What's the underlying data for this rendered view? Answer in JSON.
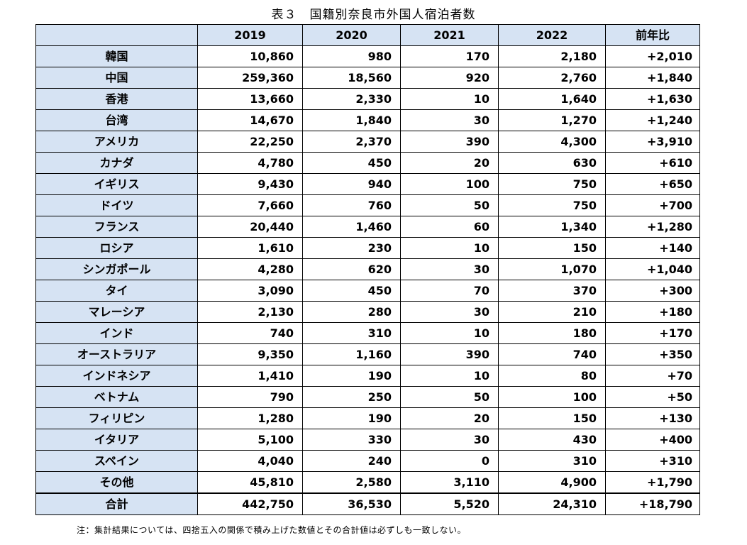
{
  "caption": "表３　国籍別奈良市外国人宿泊者数",
  "header": {
    "corner": "",
    "y2019": "2019",
    "y2020": "2020",
    "y2021": "2021",
    "y2022": "2022",
    "yoy": "前年比"
  },
  "rows": [
    {
      "label": "韓国",
      "v2019": "10,860",
      "v2020": "980",
      "v2021": "170",
      "v2022": "2,180",
      "yoy": "+2,010"
    },
    {
      "label": "中国",
      "v2019": "259,360",
      "v2020": "18,560",
      "v2021": "920",
      "v2022": "2,760",
      "yoy": "+1,840"
    },
    {
      "label": "香港",
      "v2019": "13,660",
      "v2020": "2,330",
      "v2021": "10",
      "v2022": "1,640",
      "yoy": "+1,630"
    },
    {
      "label": "台湾",
      "v2019": "14,670",
      "v2020": "1,840",
      "v2021": "30",
      "v2022": "1,270",
      "yoy": "+1,240"
    },
    {
      "label": "アメリカ",
      "v2019": "22,250",
      "v2020": "2,370",
      "v2021": "390",
      "v2022": "4,300",
      "yoy": "+3,910"
    },
    {
      "label": "カナダ",
      "v2019": "4,780",
      "v2020": "450",
      "v2021": "20",
      "v2022": "630",
      "yoy": "+610"
    },
    {
      "label": "イギリス",
      "v2019": "9,430",
      "v2020": "940",
      "v2021": "100",
      "v2022": "750",
      "yoy": "+650"
    },
    {
      "label": "ドイツ",
      "v2019": "7,660",
      "v2020": "760",
      "v2021": "50",
      "v2022": "750",
      "yoy": "+700"
    },
    {
      "label": "フランス",
      "v2019": "20,440",
      "v2020": "1,460",
      "v2021": "60",
      "v2022": "1,340",
      "yoy": "+1,280"
    },
    {
      "label": "ロシア",
      "v2019": "1,610",
      "v2020": "230",
      "v2021": "10",
      "v2022": "150",
      "yoy": "+140"
    },
    {
      "label": "シンガポール",
      "v2019": "4,280",
      "v2020": "620",
      "v2021": "30",
      "v2022": "1,070",
      "yoy": "+1,040"
    },
    {
      "label": "タイ",
      "v2019": "3,090",
      "v2020": "450",
      "v2021": "70",
      "v2022": "370",
      "yoy": "+300"
    },
    {
      "label": "マレーシア",
      "v2019": "2,130",
      "v2020": "280",
      "v2021": "30",
      "v2022": "210",
      "yoy": "+180"
    },
    {
      "label": "インド",
      "v2019": "740",
      "v2020": "310",
      "v2021": "10",
      "v2022": "180",
      "yoy": "+170"
    },
    {
      "label": "オーストラリア",
      "v2019": "9,350",
      "v2020": "1,160",
      "v2021": "390",
      "v2022": "740",
      "yoy": "+350"
    },
    {
      "label": "インドネシア",
      "v2019": "1,410",
      "v2020": "190",
      "v2021": "10",
      "v2022": "80",
      "yoy": "+70"
    },
    {
      "label": "ベトナム",
      "v2019": "790",
      "v2020": "250",
      "v2021": "50",
      "v2022": "100",
      "yoy": "+50"
    },
    {
      "label": "フィリピン",
      "v2019": "1,280",
      "v2020": "190",
      "v2021": "20",
      "v2022": "150",
      "yoy": "+130"
    },
    {
      "label": "イタリア",
      "v2019": "5,100",
      "v2020": "330",
      "v2021": "30",
      "v2022": "430",
      "yoy": "+400"
    },
    {
      "label": "スペイン",
      "v2019": "4,040",
      "v2020": "240",
      "v2021": "0",
      "v2022": "310",
      "yoy": "+310"
    },
    {
      "label": "その他",
      "v2019": "45,810",
      "v2020": "2,580",
      "v2021": "3,110",
      "v2022": "4,900",
      "yoy": "+1,790"
    }
  ],
  "total": {
    "label": "合計",
    "v2019": "442,750",
    "v2020": "36,530",
    "v2021": "5,520",
    "v2022": "24,310",
    "yoy": "+18,790"
  },
  "note": "注：集計結果については、四捨五入の関係で積み上げた数値とその合計値は必ずしも一致しない。",
  "colors": {
    "header_bg": "#d6e3f3",
    "border": "#000000"
  }
}
